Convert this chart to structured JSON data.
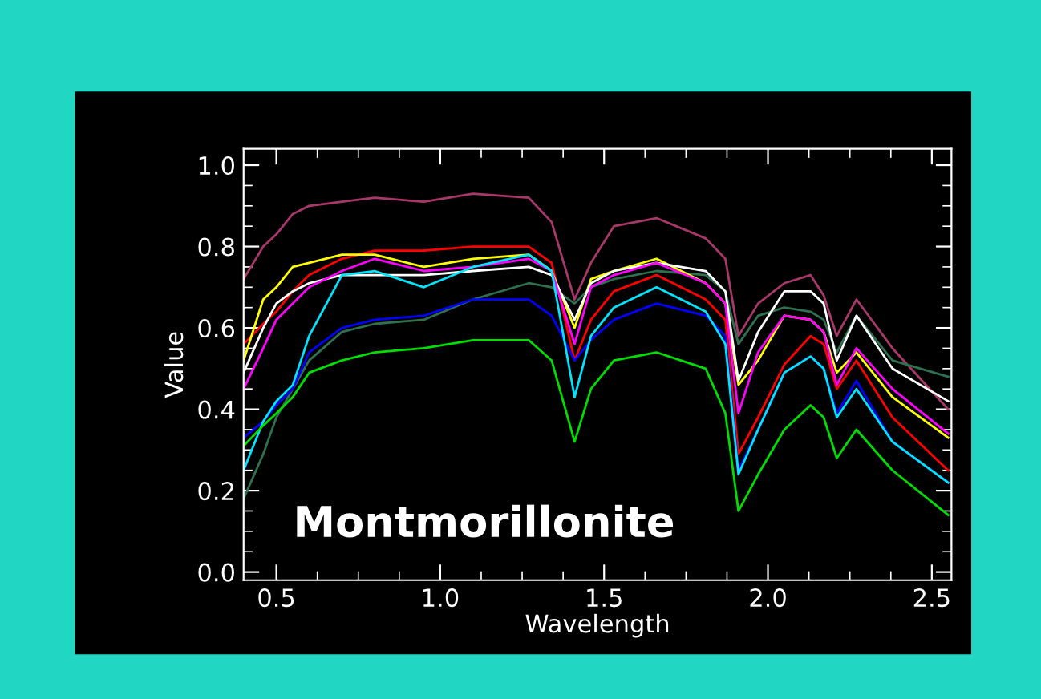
{
  "chart_data": {
    "type": "line",
    "xlabel": "Wavelength",
    "ylabel": "Value",
    "annotations": [
      "Montmorillonite"
    ],
    "x": [
      0.4,
      0.46,
      0.5,
      0.55,
      0.6,
      0.7,
      0.8,
      0.95,
      1.1,
      1.27,
      1.34,
      1.41,
      1.46,
      1.53,
      1.66,
      1.81,
      1.87,
      1.91,
      1.97,
      2.05,
      2.13,
      2.17,
      2.21,
      2.27,
      2.38,
      2.55
    ],
    "series": [
      {
        "color": "#a8386a",
        "values": [
          0.72,
          0.8,
          0.83,
          0.88,
          0.9,
          0.91,
          0.92,
          0.91,
          0.93,
          0.92,
          0.86,
          0.67,
          0.76,
          0.85,
          0.87,
          0.82,
          0.77,
          0.58,
          0.66,
          0.71,
          0.73,
          0.68,
          0.58,
          0.67,
          0.55,
          0.4
        ]
      },
      {
        "color": "#2e7050",
        "values": [
          0.18,
          0.29,
          0.38,
          0.45,
          0.52,
          0.59,
          0.61,
          0.62,
          0.67,
          0.71,
          0.7,
          0.66,
          0.7,
          0.72,
          0.74,
          0.73,
          0.69,
          0.56,
          0.63,
          0.65,
          0.64,
          0.62,
          0.54,
          0.63,
          0.52,
          0.48
        ]
      },
      {
        "color": "#ff0000",
        "values": [
          0.56,
          0.61,
          0.64,
          0.69,
          0.73,
          0.77,
          0.79,
          0.79,
          0.8,
          0.8,
          0.76,
          0.52,
          0.62,
          0.69,
          0.73,
          0.67,
          0.62,
          0.29,
          0.38,
          0.51,
          0.58,
          0.56,
          0.45,
          0.52,
          0.38,
          0.25
        ]
      },
      {
        "color": "#ffff00",
        "values": [
          0.52,
          0.67,
          0.7,
          0.75,
          0.76,
          0.78,
          0.78,
          0.75,
          0.77,
          0.78,
          0.74,
          0.6,
          0.72,
          0.74,
          0.77,
          0.71,
          0.66,
          0.46,
          0.52,
          0.63,
          0.62,
          0.59,
          0.49,
          0.54,
          0.43,
          0.33
        ]
      },
      {
        "color": "#ffffff",
        "values": [
          0.49,
          0.6,
          0.66,
          0.69,
          0.71,
          0.73,
          0.73,
          0.73,
          0.74,
          0.75,
          0.73,
          0.62,
          0.71,
          0.74,
          0.76,
          0.74,
          0.69,
          0.47,
          0.59,
          0.69,
          0.69,
          0.66,
          0.52,
          0.63,
          0.5,
          0.42
        ]
      },
      {
        "color": "#ff00ff",
        "values": [
          0.45,
          0.55,
          0.62,
          0.66,
          0.7,
          0.74,
          0.77,
          0.74,
          0.75,
          0.77,
          0.74,
          0.56,
          0.7,
          0.73,
          0.76,
          0.71,
          0.66,
          0.39,
          0.54,
          0.63,
          0.62,
          0.59,
          0.46,
          0.55,
          0.45,
          0.34
        ]
      },
      {
        "color": "#0000ff",
        "values": [
          0.33,
          0.37,
          0.41,
          0.45,
          0.54,
          0.6,
          0.62,
          0.63,
          0.67,
          0.67,
          0.63,
          0.52,
          0.57,
          0.62,
          0.66,
          0.63,
          0.58,
          0.25,
          0.35,
          0.49,
          0.53,
          0.5,
          0.39,
          0.47,
          0.32,
          0.22
        ]
      },
      {
        "color": "#00e5ff",
        "values": [
          0.25,
          0.37,
          0.42,
          0.46,
          0.58,
          0.73,
          0.74,
          0.7,
          0.75,
          0.78,
          0.74,
          0.43,
          0.58,
          0.65,
          0.7,
          0.64,
          0.56,
          0.24,
          0.35,
          0.49,
          0.53,
          0.5,
          0.38,
          0.45,
          0.32,
          0.22
        ]
      },
      {
        "color": "#00dd00",
        "values": [
          0.31,
          0.36,
          0.39,
          0.43,
          0.49,
          0.52,
          0.54,
          0.55,
          0.57,
          0.57,
          0.52,
          0.32,
          0.45,
          0.52,
          0.54,
          0.5,
          0.39,
          0.15,
          0.24,
          0.35,
          0.41,
          0.38,
          0.28,
          0.35,
          0.25,
          0.14
        ]
      }
    ],
    "xlim": [
      0.4,
      2.56
    ],
    "ylim": [
      -0.02,
      1.04
    ],
    "xticks": [
      0.5,
      {
        "value": 1,
        "label": "1.0"
      },
      1.5,
      {
        "value": 2,
        "label": "2.0"
      },
      2.5
    ],
    "yticks": [
      {
        "value": 0,
        "label": "0.0"
      },
      0.2,
      0.4,
      0.6,
      0.8,
      {
        "value": 1,
        "label": "1.0"
      }
    ],
    "marker": "none",
    "line_style": "solid"
  }
}
